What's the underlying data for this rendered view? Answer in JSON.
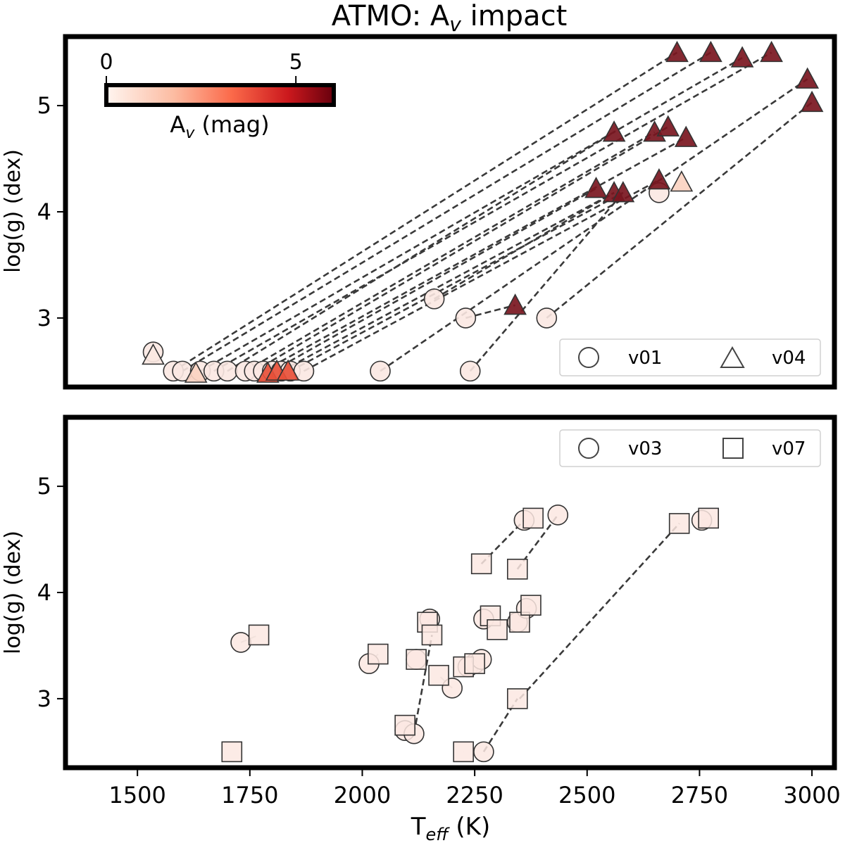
{
  "figure": {
    "title_main": "ATMO: A",
    "title_sub": "v",
    "title_end": " impact"
  },
  "colors": {
    "high": "#7a1620",
    "mid": "#e8503a",
    "low": "#fbd3c1",
    "pale": "#fbe8e2",
    "line": "#3a3a3a"
  },
  "chart_data": [
    {
      "type": "scatter",
      "panel": "top",
      "xlabel": "",
      "ylabel_main": "log(g) (dex)",
      "xlim": [
        1340,
        3050
      ],
      "ylim": [
        2.35,
        5.65
      ],
      "yticks": [
        3,
        4,
        5
      ],
      "ytick_labels": [
        "3",
        "4",
        "5"
      ],
      "legend": {
        "placement": "lower-right",
        "entries": [
          {
            "marker": "circle",
            "label": "v01"
          },
          {
            "marker": "triangle",
            "label": "v04"
          }
        ]
      },
      "colorbar": {
        "label_main": "A",
        "label_sub": "v",
        "label_end": " (mag)",
        "range": [
          0,
          6
        ],
        "ticks": [
          0,
          5
        ],
        "tick_labels": [
          "0",
          "5"
        ]
      },
      "pairs": [
        {
          "x1": 1580,
          "y1": 2.5,
          "x2": 2700,
          "y2": 5.5,
          "av": 6
        },
        {
          "x1": 1600,
          "y1": 2.5,
          "x2": 2775,
          "y2": 5.5,
          "av": 6
        },
        {
          "x1": 1640,
          "y1": 2.5,
          "x2": 2845,
          "y2": 5.45,
          "av": 6
        },
        {
          "x1": 1670,
          "y1": 2.5,
          "x2": 2910,
          "y2": 5.5,
          "av": 6
        },
        {
          "x1": 1700,
          "y1": 2.5,
          "x2": 2560,
          "y2": 4.75,
          "av": 6
        },
        {
          "x1": 1740,
          "y1": 2.5,
          "x2": 2650,
          "y2": 4.75,
          "av": 6
        },
        {
          "x1": 1760,
          "y1": 2.5,
          "x2": 2680,
          "y2": 4.8,
          "av": 6
        },
        {
          "x1": 1780,
          "y1": 2.5,
          "x2": 2720,
          "y2": 4.7,
          "av": 6
        },
        {
          "x1": 1800,
          "y1": 2.5,
          "x2": 2520,
          "y2": 4.22,
          "av": 6
        },
        {
          "x1": 1820,
          "y1": 2.5,
          "x2": 2560,
          "y2": 4.18,
          "av": 6
        },
        {
          "x1": 1840,
          "y1": 2.5,
          "x2": 2580,
          "y2": 4.18,
          "av": 6
        },
        {
          "x1": 1870,
          "y1": 2.5,
          "x2": 2660,
          "y2": 4.3,
          "av": 6
        },
        {
          "x1": 2040,
          "y1": 2.5,
          "x2": 2990,
          "y2": 5.25,
          "av": 6
        },
        {
          "x1": 2160,
          "y1": 3.18,
          "x2": 2560,
          "y2": 4.18,
          "av": 6
        },
        {
          "x1": 2230,
          "y1": 3.0,
          "x2": 2340,
          "y2": 3.12,
          "av": 6
        },
        {
          "x1": 2240,
          "y1": 2.5,
          "x2": 2580,
          "y2": 4.18,
          "av": 6
        },
        {
          "x1": 2410,
          "y1": 3.0,
          "x2": 3000,
          "y2": 5.03,
          "av": 6
        }
      ],
      "v01_points": [
        {
          "x": 1535,
          "y": 2.68
        },
        {
          "x": 1580,
          "y": 2.5
        },
        {
          "x": 1600,
          "y": 2.5
        },
        {
          "x": 1640,
          "y": 2.5
        },
        {
          "x": 1670,
          "y": 2.5
        },
        {
          "x": 1700,
          "y": 2.5
        },
        {
          "x": 1740,
          "y": 2.5
        },
        {
          "x": 1760,
          "y": 2.5
        },
        {
          "x": 1780,
          "y": 2.5
        },
        {
          "x": 1800,
          "y": 2.5
        },
        {
          "x": 1820,
          "y": 2.5
        },
        {
          "x": 1840,
          "y": 2.5
        },
        {
          "x": 1870,
          "y": 2.5
        },
        {
          "x": 2040,
          "y": 2.5
        },
        {
          "x": 2160,
          "y": 3.18
        },
        {
          "x": 2230,
          "y": 3.0
        },
        {
          "x": 2240,
          "y": 2.5
        },
        {
          "x": 2410,
          "y": 3.0
        },
        {
          "x": 2660,
          "y": 4.18
        }
      ],
      "v04_points": [
        {
          "x": 1535,
          "y": 2.65,
          "av": 0
        },
        {
          "x": 1630,
          "y": 2.48,
          "av": 2
        },
        {
          "x": 1790,
          "y": 2.48,
          "av": 4
        },
        {
          "x": 1810,
          "y": 2.5,
          "av": 4.2
        },
        {
          "x": 1835,
          "y": 2.5,
          "av": 4.2
        },
        {
          "x": 2700,
          "y": 5.5,
          "av": 6
        },
        {
          "x": 2775,
          "y": 5.5,
          "av": 6
        },
        {
          "x": 2845,
          "y": 5.45,
          "av": 6
        },
        {
          "x": 2910,
          "y": 5.5,
          "av": 6
        },
        {
          "x": 2990,
          "y": 5.25,
          "av": 6
        },
        {
          "x": 3000,
          "y": 5.03,
          "av": 6
        },
        {
          "x": 2560,
          "y": 4.75,
          "av": 6
        },
        {
          "x": 2650,
          "y": 4.75,
          "av": 6
        },
        {
          "x": 2680,
          "y": 4.8,
          "av": 6
        },
        {
          "x": 2720,
          "y": 4.7,
          "av": 6
        },
        {
          "x": 2520,
          "y": 4.22,
          "av": 6
        },
        {
          "x": 2560,
          "y": 4.18,
          "av": 6
        },
        {
          "x": 2580,
          "y": 4.18,
          "av": 6
        },
        {
          "x": 2660,
          "y": 4.3,
          "av": 6
        },
        {
          "x": 2710,
          "y": 4.28,
          "av": 1.5
        },
        {
          "x": 2340,
          "y": 3.12,
          "av": 6
        }
      ]
    },
    {
      "type": "scatter",
      "panel": "bottom",
      "xlabel_main": "T",
      "xlabel_sub": "eff",
      "xlabel_end": " (K)",
      "ylabel_main": "log(g) (dex)",
      "xlim": [
        1340,
        3050
      ],
      "ylim": [
        2.35,
        5.65
      ],
      "xticks": [
        1500,
        1750,
        2000,
        2250,
        2500,
        2750,
        3000
      ],
      "xtick_labels": [
        "1500",
        "1750",
        "2000",
        "2250",
        "2500",
        "2750",
        "3000"
      ],
      "yticks": [
        3,
        4,
        5
      ],
      "ytick_labels": [
        "3",
        "4",
        "5"
      ],
      "legend": {
        "placement": "upper-right",
        "entries": [
          {
            "marker": "circle",
            "label": "v03"
          },
          {
            "marker": "square",
            "label": "v07"
          }
        ]
      },
      "pairs": [
        {
          "x1": 1710,
          "y1": 2.5,
          "x2": 1710,
          "y2": 2.5,
          "dashed": false
        },
        {
          "x1": 1730,
          "y1": 3.53,
          "x2": 1770,
          "y2": 3.6,
          "dashed": false
        },
        {
          "x1": 2015,
          "y1": 3.33,
          "x2": 2035,
          "y2": 3.42,
          "dashed": false
        },
        {
          "x1": 2095,
          "y1": 2.7,
          "x2": 2095,
          "y2": 2.75,
          "dashed": false
        },
        {
          "x1": 2115,
          "y1": 2.67,
          "x2": 2155,
          "y2": 3.6,
          "dashed": true
        },
        {
          "x1": 2120,
          "y1": 3.37,
          "x2": 2120,
          "y2": 3.37,
          "dashed": false
        },
        {
          "x1": 2150,
          "y1": 3.75,
          "x2": 2145,
          "y2": 3.72,
          "dashed": false
        },
        {
          "x1": 2200,
          "y1": 3.1,
          "x2": 2170,
          "y2": 3.22,
          "dashed": false
        },
        {
          "x1": 2225,
          "y1": 2.5,
          "x2": 2225,
          "y2": 2.5,
          "dashed": false
        },
        {
          "x1": 2270,
          "y1": 2.5,
          "x2": 2345,
          "y2": 3.0,
          "dashed": true
        },
        {
          "x1": 2235,
          "y1": 3.3,
          "x2": 2225,
          "y2": 3.3,
          "dashed": false
        },
        {
          "x1": 2250,
          "y1": 3.33,
          "x2": 2250,
          "y2": 3.33,
          "dashed": false
        },
        {
          "x1": 2265,
          "y1": 3.37,
          "x2": 2265,
          "y2": 3.37,
          "dashed": false
        },
        {
          "x1": 2270,
          "y1": 3.75,
          "x2": 2285,
          "y2": 3.78,
          "dashed": false
        },
        {
          "x1": 2300,
          "y1": 3.65,
          "x2": 2300,
          "y2": 3.65,
          "dashed": false
        },
        {
          "x1": 2265,
          "y1": 4.27,
          "x2": 2360,
          "y2": 4.68,
          "dashed": true
        },
        {
          "x1": 2345,
          "y1": 4.22,
          "x2": 2435,
          "y2": 4.73,
          "dashed": true
        },
        {
          "x1": 2345,
          "y1": 3.72,
          "x2": 2350,
          "y2": 3.72,
          "dashed": false
        },
        {
          "x1": 2365,
          "y1": 3.85,
          "x2": 2375,
          "y2": 3.88,
          "dashed": false
        },
        {
          "x1": 2370,
          "y1": 4.68,
          "x2": 2380,
          "y2": 4.7,
          "dashed": false
        },
        {
          "x1": 2350,
          "y1": 3.0,
          "x2": 2705,
          "y2": 4.65,
          "dashed": true
        },
        {
          "x1": 2755,
          "y1": 4.68,
          "x2": 2770,
          "y2": 4.7,
          "dashed": false
        }
      ],
      "v03_points": [
        {
          "x": 1730,
          "y": 3.53
        },
        {
          "x": 2015,
          "y": 3.33
        },
        {
          "x": 2095,
          "y": 2.7
        },
        {
          "x": 2115,
          "y": 2.67
        },
        {
          "x": 2120,
          "y": 3.37
        },
        {
          "x": 2150,
          "y": 3.75
        },
        {
          "x": 2200,
          "y": 3.1
        },
        {
          "x": 2235,
          "y": 3.3
        },
        {
          "x": 2250,
          "y": 3.33
        },
        {
          "x": 2265,
          "y": 3.37
        },
        {
          "x": 2270,
          "y": 3.75
        },
        {
          "x": 2270,
          "y": 2.5
        },
        {
          "x": 2345,
          "y": 3.72
        },
        {
          "x": 2365,
          "y": 3.85
        },
        {
          "x": 2360,
          "y": 4.68
        },
        {
          "x": 2435,
          "y": 4.73
        },
        {
          "x": 2755,
          "y": 4.68
        }
      ],
      "v07_points": [
        {
          "x": 1710,
          "y": 2.5
        },
        {
          "x": 1770,
          "y": 3.6
        },
        {
          "x": 2035,
          "y": 3.42
        },
        {
          "x": 2095,
          "y": 2.75
        },
        {
          "x": 2120,
          "y": 3.37
        },
        {
          "x": 2145,
          "y": 3.72
        },
        {
          "x": 2155,
          "y": 3.6
        },
        {
          "x": 2170,
          "y": 3.22
        },
        {
          "x": 2225,
          "y": 3.3
        },
        {
          "x": 2225,
          "y": 2.5
        },
        {
          "x": 2250,
          "y": 3.33
        },
        {
          "x": 2265,
          "y": 4.27
        },
        {
          "x": 2285,
          "y": 3.78
        },
        {
          "x": 2300,
          "y": 3.65
        },
        {
          "x": 2345,
          "y": 4.22
        },
        {
          "x": 2345,
          "y": 3.0
        },
        {
          "x": 2350,
          "y": 3.72
        },
        {
          "x": 2375,
          "y": 3.88
        },
        {
          "x": 2380,
          "y": 4.7
        },
        {
          "x": 2705,
          "y": 4.65
        },
        {
          "x": 2770,
          "y": 4.7
        }
      ]
    }
  ]
}
